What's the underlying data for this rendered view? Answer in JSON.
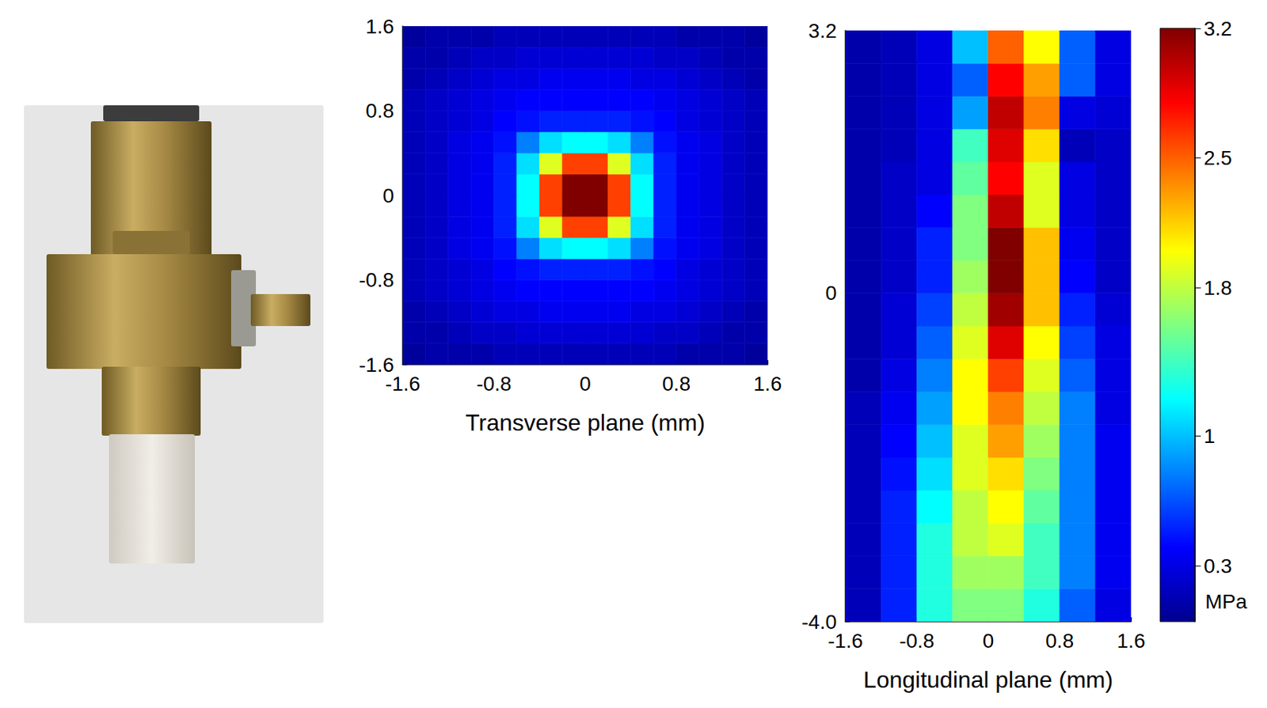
{
  "chart_data": [
    {
      "type": "heatmap",
      "xlabel": "Transverse plane (mm)",
      "xlim": [
        -1.6,
        1.6
      ],
      "ylim": [
        -1.6,
        1.6
      ],
      "xticks": [
        -1.6,
        -0.8,
        0,
        0.8,
        1.6
      ],
      "yticks": [
        -1.6,
        -0.8,
        0,
        0.8,
        1.6
      ],
      "x_edges": [
        -1.6,
        -1.4,
        -1.2,
        -1.0,
        -0.8,
        -0.6,
        -0.4,
        -0.2,
        0,
        0.2,
        0.4,
        0.6,
        0.8,
        1.0,
        1.2,
        1.4,
        1.6
      ],
      "y_edges": [
        -1.6,
        -1.4,
        -1.2,
        -1.0,
        -0.8,
        -0.6,
        -0.4,
        -0.2,
        0,
        0.2,
        0.4,
        0.6,
        0.8,
        1.0,
        1.2,
        1.4,
        1.6
      ],
      "cells": [
        [
          0.05,
          0.1,
          0.1,
          0.1,
          0.15,
          0.15,
          0.15,
          0.15,
          0.15,
          0.15,
          0.15,
          0.15,
          0.1,
          0.1,
          0.1,
          0.05
        ],
        [
          0.1,
          0.1,
          0.15,
          0.2,
          0.2,
          0.25,
          0.25,
          0.25,
          0.25,
          0.25,
          0.25,
          0.2,
          0.2,
          0.15,
          0.1,
          0.1
        ],
        [
          0.1,
          0.15,
          0.2,
          0.25,
          0.3,
          0.3,
          0.35,
          0.35,
          0.35,
          0.35,
          0.3,
          0.3,
          0.25,
          0.2,
          0.15,
          0.1
        ],
        [
          0.15,
          0.2,
          0.25,
          0.3,
          0.35,
          0.4,
          0.4,
          0.4,
          0.4,
          0.4,
          0.4,
          0.35,
          0.3,
          0.25,
          0.2,
          0.15
        ],
        [
          0.15,
          0.2,
          0.25,
          0.3,
          0.4,
          0.45,
          0.5,
          0.5,
          0.5,
          0.5,
          0.45,
          0.4,
          0.3,
          0.25,
          0.2,
          0.15
        ],
        [
          0.15,
          0.2,
          0.3,
          0.35,
          0.45,
          0.8,
          1.1,
          1.2,
          1.2,
          1.1,
          0.8,
          0.45,
          0.35,
          0.3,
          0.2,
          0.15
        ],
        [
          0.15,
          0.2,
          0.3,
          0.35,
          0.5,
          1.1,
          1.9,
          2.6,
          2.6,
          1.9,
          1.1,
          0.5,
          0.35,
          0.3,
          0.2,
          0.15
        ],
        [
          0.15,
          0.2,
          0.3,
          0.35,
          0.5,
          1.2,
          2.6,
          3.2,
          3.2,
          2.6,
          1.2,
          0.5,
          0.35,
          0.3,
          0.2,
          0.15
        ],
        [
          0.15,
          0.2,
          0.3,
          0.35,
          0.5,
          1.2,
          2.6,
          3.2,
          3.2,
          2.6,
          1.2,
          0.5,
          0.35,
          0.3,
          0.2,
          0.15
        ],
        [
          0.15,
          0.2,
          0.3,
          0.35,
          0.5,
          1.1,
          1.9,
          2.6,
          2.6,
          1.9,
          1.1,
          0.5,
          0.35,
          0.3,
          0.2,
          0.15
        ],
        [
          0.15,
          0.2,
          0.3,
          0.35,
          0.45,
          0.8,
          1.1,
          1.2,
          1.2,
          1.1,
          0.8,
          0.45,
          0.35,
          0.3,
          0.2,
          0.15
        ],
        [
          0.15,
          0.2,
          0.25,
          0.3,
          0.4,
          0.45,
          0.5,
          0.5,
          0.5,
          0.5,
          0.45,
          0.4,
          0.3,
          0.25,
          0.2,
          0.15
        ],
        [
          0.15,
          0.2,
          0.25,
          0.3,
          0.35,
          0.4,
          0.4,
          0.4,
          0.4,
          0.4,
          0.4,
          0.35,
          0.3,
          0.25,
          0.2,
          0.15
        ],
        [
          0.1,
          0.15,
          0.2,
          0.25,
          0.3,
          0.3,
          0.35,
          0.35,
          0.35,
          0.35,
          0.3,
          0.3,
          0.25,
          0.2,
          0.15,
          0.1
        ],
        [
          0.1,
          0.1,
          0.15,
          0.2,
          0.2,
          0.25,
          0.25,
          0.25,
          0.25,
          0.25,
          0.25,
          0.2,
          0.2,
          0.15,
          0.1,
          0.1
        ],
        [
          0.05,
          0.1,
          0.1,
          0.1,
          0.15,
          0.15,
          0.15,
          0.15,
          0.15,
          0.15,
          0.15,
          0.15,
          0.1,
          0.1,
          0.1,
          0.05
        ]
      ]
    },
    {
      "type": "heatmap",
      "xlabel": "Longitudinal plane (mm)",
      "xlim": [
        -1.6,
        1.6
      ],
      "ylim": [
        -4.0,
        3.2
      ],
      "xticks": [
        -1.6,
        -0.8,
        0,
        0.8,
        1.6
      ],
      "yticks": [
        {
          "value": -4.0,
          "label": "-4.0"
        },
        0,
        3.2
      ],
      "x_edges": [
        -1.6,
        -1.2,
        -0.8,
        -0.4,
        0,
        0.4,
        0.8,
        1.2,
        1.6
      ],
      "y_edges": [
        -4.0,
        -3.6,
        -3.2,
        -2.8,
        -2.4,
        -2.0,
        -1.6,
        -1.2,
        -0.8,
        -0.4,
        0,
        0.4,
        0.8,
        1.2,
        1.6,
        2.0,
        2.4,
        2.8,
        3.2
      ],
      "cells": [
        [
          0.15,
          0.5,
          1.3,
          1.6,
          1.6,
          1.3,
          0.7,
          0.3
        ],
        [
          0.15,
          0.5,
          1.3,
          1.7,
          1.7,
          1.4,
          0.8,
          0.35
        ],
        [
          0.15,
          0.5,
          1.3,
          1.8,
          1.9,
          1.4,
          0.8,
          0.35
        ],
        [
          0.15,
          0.5,
          1.2,
          1.8,
          2.0,
          1.5,
          0.8,
          0.35
        ],
        [
          0.15,
          0.45,
          1.1,
          1.9,
          2.1,
          1.6,
          0.8,
          0.35
        ],
        [
          0.15,
          0.4,
          1.0,
          1.9,
          2.3,
          1.7,
          0.8,
          0.35
        ],
        [
          0.15,
          0.35,
          0.9,
          2.0,
          2.4,
          1.8,
          0.8,
          0.3
        ],
        [
          0.1,
          0.3,
          0.8,
          2.0,
          2.6,
          1.9,
          0.7,
          0.3
        ],
        [
          0.1,
          0.25,
          0.7,
          1.9,
          2.9,
          2.0,
          0.6,
          0.3
        ],
        [
          0.1,
          0.25,
          0.6,
          1.8,
          3.1,
          2.2,
          0.5,
          0.25
        ],
        [
          0.1,
          0.2,
          0.5,
          1.7,
          3.2,
          2.2,
          0.4,
          0.2
        ],
        [
          0.1,
          0.2,
          0.5,
          1.6,
          3.2,
          2.2,
          0.35,
          0.2
        ],
        [
          0.1,
          0.2,
          0.4,
          1.6,
          3.0,
          1.9,
          0.3,
          0.2
        ],
        [
          0.1,
          0.2,
          0.3,
          1.5,
          2.8,
          1.9,
          0.3,
          0.2
        ],
        [
          0.1,
          0.15,
          0.3,
          1.4,
          2.9,
          2.1,
          0.15,
          0.2
        ],
        [
          0.1,
          0.15,
          0.3,
          0.9,
          3.0,
          2.4,
          0.3,
          0.25
        ],
        [
          0.1,
          0.15,
          0.3,
          0.7,
          2.8,
          2.3,
          0.7,
          0.3
        ],
        [
          0.1,
          0.15,
          0.3,
          1.0,
          2.5,
          2.0,
          0.7,
          0.3
        ]
      ],
      "colorbar": {
        "range": [
          0,
          3.2
        ],
        "ticks": [
          0.3,
          1,
          1.8,
          2.5,
          3.2
        ],
        "label": "MPa"
      }
    }
  ]
}
